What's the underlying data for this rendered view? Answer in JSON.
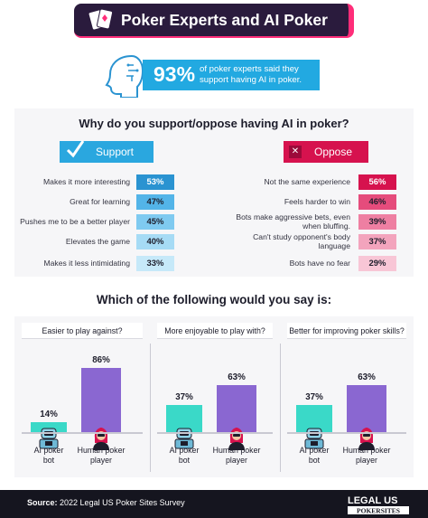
{
  "header": {
    "title": "Poker Experts and AI Poker"
  },
  "headline": {
    "percent": "93%",
    "text": "of poker experts said they support having AI in poker."
  },
  "survey": {
    "question": "Why do you support/oppose having AI in poker?",
    "support_label": "Support",
    "oppose_label": "Oppose",
    "support": [
      {
        "label": "Makes it more interesting",
        "value": "53%"
      },
      {
        "label": "Great for learning",
        "value": "47%"
      },
      {
        "label": "Pushes me to be a better player",
        "value": "45%"
      },
      {
        "label": "Elevates the game",
        "value": "40%"
      },
      {
        "label": "Makes it less intimidating",
        "value": "33%"
      }
    ],
    "oppose": [
      {
        "label": "Not the same experience",
        "value": "56%"
      },
      {
        "label": "Feels harder to win",
        "value": "46%"
      },
      {
        "label": "Bots make aggressive bets, even when bluffing.",
        "value": "39%"
      },
      {
        "label": "Can't study opponent's body language",
        "value": "37%"
      },
      {
        "label": "Bots have no fear",
        "value": "29%"
      }
    ]
  },
  "chart_data": {
    "type": "bar",
    "title": "Which of the following would you say is:",
    "categories": [
      "AI poker bot",
      "Human poker player"
    ],
    "panels": [
      {
        "question": "Easier to play against?",
        "values": [
          14,
          86
        ]
      },
      {
        "question": "More enjoyable to play with?",
        "values": [
          37,
          63
        ]
      },
      {
        "question": "Better for improving poker skills?",
        "values": [
          37,
          63
        ]
      }
    ],
    "ylim": [
      0,
      100
    ],
    "colors": {
      "bot": "#3ad9c8",
      "human": "#8a67d1"
    }
  },
  "labels": {
    "bot": "AI poker bot",
    "human": "Human poker player"
  },
  "footer": {
    "source_label": "Source:",
    "source_text": "2022 Legal US Poker Sites Survey",
    "logo_top": "LEGAL US",
    "logo_bottom": "POKERSITES"
  },
  "colors": {
    "support_shades": [
      "#2a93d1",
      "#53b4e8",
      "#7fcaf0",
      "#a6dbf5",
      "#c6e9f9"
    ],
    "oppose_shades": [
      "#d6124e",
      "#e54c7c",
      "#ee7fa2",
      "#f3a4bd",
      "#f8c6d6"
    ]
  }
}
